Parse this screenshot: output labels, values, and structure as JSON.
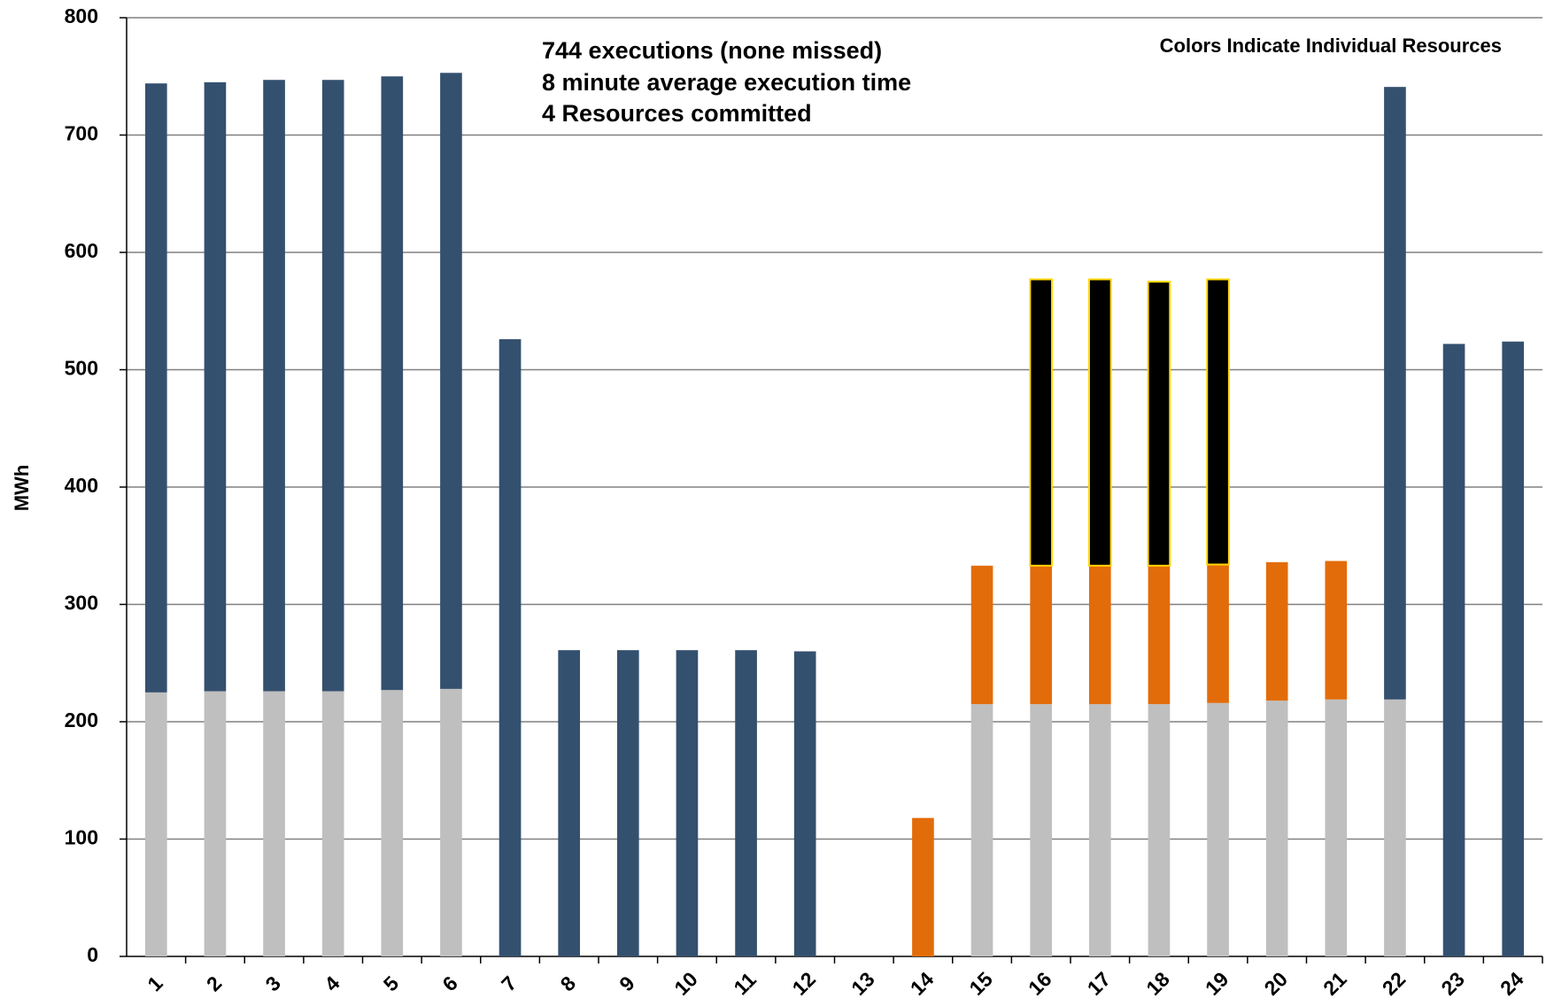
{
  "chart_data": {
    "type": "stacked_bar",
    "annotations": [
      "744  executions (none missed)",
      "8 minute average execution time",
      "4 Resources committed"
    ],
    "note": "Colors Indicate Individual Resources",
    "ylabel": "MWh",
    "categories": [
      "1",
      "2",
      "3",
      "4",
      "5",
      "6",
      "7",
      "8",
      "9",
      "10",
      "11",
      "12",
      "13",
      "14",
      "15",
      "16",
      "17",
      "18",
      "19",
      "20",
      "21",
      "22",
      "23",
      "24"
    ],
    "series": [
      {
        "color": "#bfbfbf",
        "values": [
          225,
          226,
          226,
          226,
          227,
          228,
          null,
          null,
          null,
          null,
          null,
          null,
          null,
          null,
          215,
          215,
          215,
          215,
          216,
          218,
          219,
          219,
          null,
          null
        ]
      },
      {
        "color": "#34506f",
        "values": [
          519,
          519,
          521,
          521,
          523,
          525,
          526,
          261,
          261,
          261,
          261,
          260,
          null,
          null,
          null,
          null,
          null,
          null,
          null,
          null,
          null,
          522,
          522,
          524
        ]
      },
      {
        "color": "#e36c0a",
        "values": [
          null,
          null,
          null,
          null,
          null,
          null,
          null,
          null,
          null,
          null,
          null,
          null,
          null,
          118,
          118,
          118,
          118,
          118,
          118,
          118,
          118,
          null,
          null,
          null
        ]
      },
      {
        "color": "#000000",
        "edgecolor": "#ffd700",
        "values": [
          null,
          null,
          null,
          null,
          null,
          null,
          null,
          null,
          null,
          null,
          null,
          null,
          null,
          null,
          null,
          244,
          244,
          242,
          243,
          null,
          null,
          null,
          null,
          null
        ]
      }
    ],
    "ylim": [
      0,
      800
    ],
    "yticks": [
      0,
      100,
      200,
      300,
      400,
      500,
      600,
      700,
      800
    ],
    "grid": true
  }
}
